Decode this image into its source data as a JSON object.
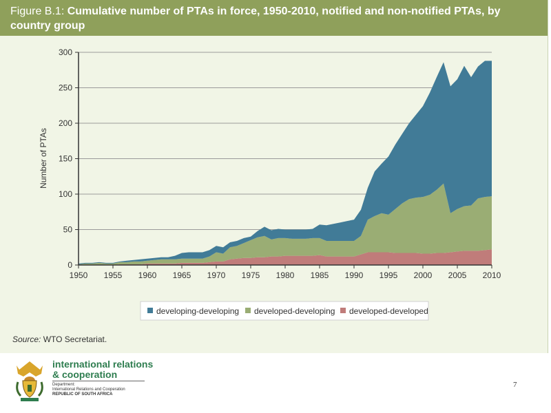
{
  "header": {
    "title_lead": "Figure B.1: ",
    "title_rest": "Cumulative number of PTAs in force, 1950-2010, notified and non-notified PTAs, by country group"
  },
  "source": {
    "label": "Source:",
    "text": " WTO Secretariat."
  },
  "footer": {
    "org_line1": "international relations",
    "org_line2": "& cooperation",
    "dept_line1": "Department:",
    "dept_line2": "International Relations and Cooperation",
    "dept_line3": "REPUBLIC OF SOUTH AFRICA",
    "page_number": "7"
  },
  "colors": {
    "header_bg": "#8fa05b",
    "panel_bg": "#f1f5e6",
    "developing_developing": "#417b97",
    "developed_developing": "#9aad74",
    "developed_developed": "#c07c7a",
    "org_green": "#2e7d4f"
  },
  "chart_data": {
    "type": "area",
    "stacked": true,
    "xlabel": "",
    "ylabel": "Number of PTAs",
    "xlim": [
      1950,
      2010
    ],
    "ylim": [
      0,
      300
    ],
    "xticks": [
      1950,
      1955,
      1960,
      1965,
      1970,
      1975,
      1980,
      1985,
      1990,
      1995,
      2000,
      2005,
      2010
    ],
    "yticks": [
      0,
      50,
      100,
      150,
      200,
      250,
      300
    ],
    "grid": "horizontal",
    "legend_position": "bottom",
    "x": [
      1950,
      1951,
      1952,
      1953,
      1954,
      1955,
      1956,
      1957,
      1958,
      1959,
      1960,
      1961,
      1962,
      1963,
      1964,
      1965,
      1966,
      1967,
      1968,
      1969,
      1970,
      1971,
      1972,
      1973,
      1974,
      1975,
      1976,
      1977,
      1978,
      1979,
      1980,
      1981,
      1982,
      1983,
      1984,
      1985,
      1986,
      1987,
      1988,
      1989,
      1990,
      1991,
      1992,
      1993,
      1994,
      1995,
      1996,
      1997,
      1998,
      1999,
      2000,
      2001,
      2002,
      2003,
      2004,
      2005,
      2006,
      2007,
      2008,
      2009,
      2010
    ],
    "series": [
      {
        "name": "developed-developed",
        "color_key": "developed_developed",
        "values": [
          0,
          0,
          0,
          0,
          0,
          0,
          1,
          1,
          1,
          1,
          2,
          2,
          2,
          2,
          2,
          3,
          3,
          3,
          3,
          4,
          5,
          5,
          8,
          9,
          10,
          10,
          11,
          11,
          12,
          12,
          13,
          13,
          13,
          13,
          13,
          14,
          12,
          12,
          12,
          12,
          12,
          15,
          18,
          18,
          18,
          18,
          17,
          17,
          17,
          17,
          16,
          16,
          17,
          17,
          18,
          19,
          20,
          20,
          20,
          21,
          22
        ]
      },
      {
        "name": "developed-developing",
        "color_key": "developed_developing",
        "values": [
          1,
          2,
          2,
          3,
          2,
          2,
          3,
          3,
          4,
          4,
          4,
          5,
          6,
          6,
          6,
          6,
          6,
          6,
          6,
          8,
          13,
          11,
          17,
          18,
          21,
          25,
          28,
          30,
          24,
          26,
          25,
          24,
          24,
          24,
          25,
          24,
          22,
          22,
          22,
          22,
          22,
          26,
          46,
          51,
          55,
          53,
          62,
          70,
          76,
          78,
          80,
          83,
          89,
          98,
          55,
          60,
          63,
          64,
          74,
          75,
          75
        ]
      },
      {
        "name": "developing-developing",
        "color_key": "developing_developing",
        "values": [
          1,
          1,
          1,
          1,
          1,
          1,
          1,
          2,
          2,
          3,
          3,
          3,
          3,
          3,
          5,
          8,
          9,
          9,
          9,
          9,
          9,
          9,
          7,
          7,
          7,
          5,
          9,
          13,
          13,
          13,
          12,
          13,
          13,
          13,
          13,
          19,
          22,
          24,
          26,
          28,
          30,
          37,
          45,
          63,
          70,
          82,
          91,
          98,
          107,
          117,
          128,
          144,
          159,
          171,
          179,
          183,
          198,
          181,
          186,
          192,
          191
        ]
      }
    ]
  }
}
